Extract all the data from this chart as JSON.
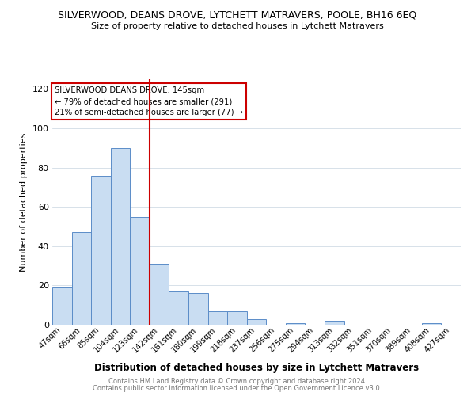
{
  "title": "SILVERWOOD, DEANS DROVE, LYTCHETT MATRAVERS, POOLE, BH16 6EQ",
  "subtitle": "Size of property relative to detached houses in Lytchett Matravers",
  "xlabel": "Distribution of detached houses by size in Lytchett Matravers",
  "ylabel": "Number of detached properties",
  "bar_labels": [
    "47sqm",
    "66sqm",
    "85sqm",
    "104sqm",
    "123sqm",
    "142sqm",
    "161sqm",
    "180sqm",
    "199sqm",
    "218sqm",
    "237sqm",
    "256sqm",
    "275sqm",
    "294sqm",
    "313sqm",
    "332sqm",
    "351sqm",
    "370sqm",
    "389sqm",
    "408sqm",
    "427sqm"
  ],
  "bar_values": [
    19,
    47,
    76,
    90,
    55,
    31,
    17,
    16,
    7,
    7,
    3,
    0,
    1,
    0,
    2,
    0,
    0,
    0,
    0,
    1,
    0
  ],
  "bar_color": "#c9ddf2",
  "bar_edge_color": "#5b8cc8",
  "vline_color": "#cc0000",
  "annotation_text": "SILVERWOOD DEANS DROVE: 145sqm\n← 79% of detached houses are smaller (291)\n21% of semi-detached houses are larger (77) →",
  "annotation_box_edge": "#cc0000",
  "ylim": [
    0,
    125
  ],
  "yticks": [
    0,
    20,
    40,
    60,
    80,
    100,
    120
  ],
  "footer1": "Contains HM Land Registry data © Crown copyright and database right 2024.",
  "footer2": "Contains public sector information licensed under the Open Government Licence v3.0.",
  "background_color": "#ffffff",
  "grid_color": "#c8d4e0"
}
